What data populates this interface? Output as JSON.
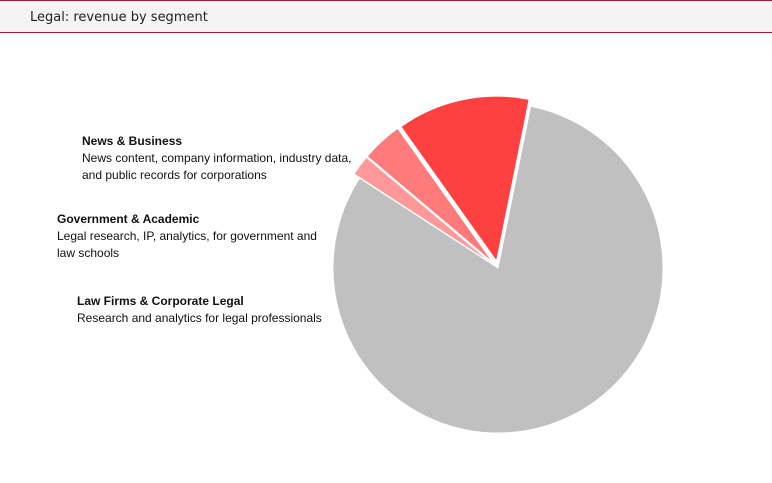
{
  "header": {
    "title": "Legal: revenue by segment"
  },
  "chart_data": {
    "type": "pie",
    "title": "Legal: revenue by segment",
    "slices": [
      {
        "name": "News & Business",
        "description": "News content, company information, industry data, and public records for corporations",
        "value": 2,
        "color": "#ff9999",
        "exploded": true
      },
      {
        "name": "Government & Academic",
        "description": "Legal research, IP, analytics, for government and law schools",
        "value": 4,
        "color": "#ff7b7b",
        "exploded": true
      },
      {
        "name": "Law Firms & Corporate Legal",
        "description": "Research and analytics for legal professionals",
        "value": 13,
        "color": "#ff4040",
        "exploded": true
      },
      {
        "name": "",
        "description": "",
        "value": 81,
        "color": "#c0c0c0",
        "exploded": false
      }
    ]
  }
}
